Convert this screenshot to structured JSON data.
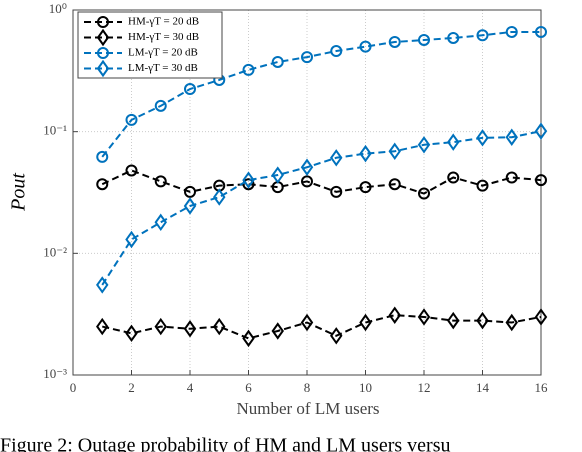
{
  "chart_data": {
    "type": "line",
    "y_label": "Pout",
    "x_label": "Number of LM users",
    "caption": "Figure 2: Outage probability of HM and LM users versu",
    "x": [
      1,
      2,
      3,
      4,
      5,
      6,
      7,
      8,
      9,
      10,
      11,
      12,
      13,
      14,
      15,
      16
    ],
    "series": [
      {
        "name": "HM-γT = 20 dB",
        "color": "#000000",
        "marker": "circle",
        "values": [
          0.037,
          0.048,
          0.039,
          0.032,
          0.036,
          0.037,
          0.035,
          0.039,
          0.032,
          0.035,
          0.037,
          0.031,
          0.042,
          0.036,
          0.042,
          0.04
        ]
      },
      {
        "name": "HM-γT = 30 dB",
        "color": "#000000",
        "marker": "diamond",
        "values": [
          0.0025,
          0.0022,
          0.0025,
          0.0024,
          0.0025,
          0.002,
          0.0023,
          0.0027,
          0.0021,
          0.0027,
          0.0031,
          0.003,
          0.0028,
          0.0028,
          0.0027,
          0.003
        ]
      },
      {
        "name": "LM-γT = 20 dB",
        "color": "#0072bd",
        "marker": "circle",
        "values": [
          0.062,
          0.125,
          0.163,
          0.224,
          0.266,
          0.322,
          0.374,
          0.41,
          0.46,
          0.5,
          0.546,
          0.567,
          0.589,
          0.62,
          0.66,
          0.66
        ]
      },
      {
        "name": "LM-γT = 30 dB",
        "color": "#0072bd",
        "marker": "diamond",
        "values": [
          0.0055,
          0.013,
          0.018,
          0.0245,
          0.029,
          0.04,
          0.044,
          0.051,
          0.061,
          0.066,
          0.069,
          0.078,
          0.082,
          0.089,
          0.09,
          0.101
        ]
      }
    ],
    "xlim": [
      0,
      16
    ],
    "xticks": [
      0,
      2,
      4,
      6,
      8,
      10,
      12,
      14,
      16
    ],
    "ylim": [
      0.001,
      1
    ],
    "log_y": true,
    "yticks": [
      {
        "value": 0.001,
        "label": "10⁻³"
      },
      {
        "value": 0.01,
        "label": "10⁻²"
      },
      {
        "value": 0.1,
        "label": "10⁻¹"
      },
      {
        "value": 1,
        "label": "10⁰"
      }
    ],
    "grid": true,
    "legend": "upper-left"
  }
}
